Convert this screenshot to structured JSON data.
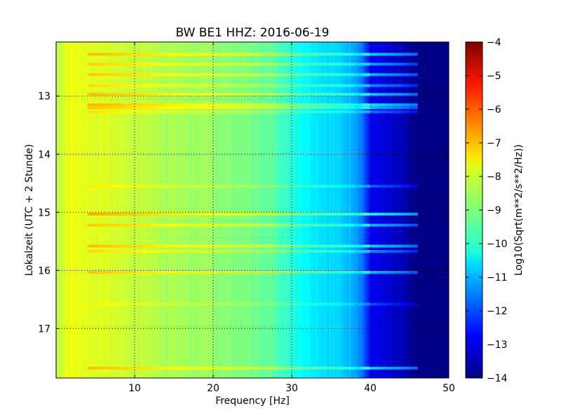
{
  "chart_data": {
    "type": "heatmap",
    "title": "BW BE1 HHZ: 2016-06-19",
    "xlabel": "Frequency [Hz]",
    "ylabel": "Lokalzeit (UTC + 2 Stunde)",
    "xlim": [
      0,
      50
    ],
    "ylim": [
      12.07,
      17.85
    ],
    "y_inverted": true,
    "grid": true,
    "x_ticks": [
      10,
      20,
      30,
      40,
      50
    ],
    "x_tick_labels": [
      "10",
      "20",
      "30",
      "40",
      "50"
    ],
    "y_ticks": [
      13,
      14,
      15,
      16,
      17
    ],
    "y_tick_labels": [
      "13",
      "14",
      "15",
      "16",
      "17"
    ],
    "colorbar": {
      "label": "Log10(Sqrt(m**2/s**2/Hz))",
      "range": [
        -14,
        -4
      ],
      "ticks": [
        -4,
        -5,
        -6,
        -7,
        -8,
        -9,
        -10,
        -11,
        -12,
        -13,
        -14
      ],
      "tick_labels": [
        "−4",
        "−5",
        "−6",
        "−7",
        "−8",
        "−9",
        "−10",
        "−11",
        "−12",
        "−13",
        "−14"
      ],
      "colormap": "jet"
    },
    "spectrum_profile": {
      "frequency_hz": [
        0,
        1,
        2,
        4,
        6,
        8,
        10,
        15,
        20,
        25,
        28,
        30,
        32,
        34,
        36,
        38,
        39,
        40,
        42,
        44,
        45,
        46,
        50
      ],
      "log_amplitude": [
        -8.5,
        -8.0,
        -7.9,
        -8.0,
        -8.1,
        -8.2,
        -8.3,
        -8.6,
        -8.8,
        -9.1,
        -9.4,
        -9.9,
        -10.3,
        -10.5,
        -10.7,
        -11.0,
        -11.6,
        -12.8,
        -13.2,
        -13.5,
        -13.8,
        -14.0,
        -14.0
      ]
    },
    "bright_bands": {
      "local_time_hours": [
        12.28,
        12.45,
        12.63,
        12.82,
        12.97,
        13.15,
        13.2,
        13.27,
        14.55,
        15.03,
        15.22,
        15.58,
        15.67,
        16.03,
        16.58,
        17.68
      ],
      "strength": [
        1.0,
        0.8,
        0.9,
        0.7,
        1.0,
        1.1,
        0.9,
        0.6,
        0.5,
        1.2,
        0.9,
        1.0,
        0.7,
        0.9,
        0.4,
        1.0
      ]
    }
  }
}
